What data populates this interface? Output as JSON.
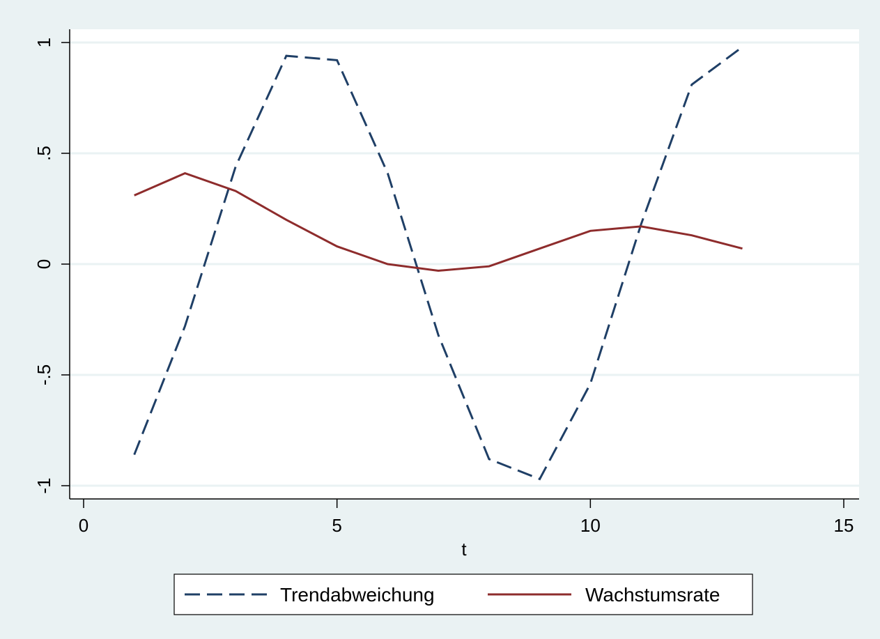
{
  "chart_data": {
    "type": "line",
    "title": "",
    "xlabel": "t",
    "ylabel": "",
    "xlim": [
      0,
      15
    ],
    "ylim": [
      -1,
      1
    ],
    "xticks": [
      0,
      5,
      10,
      15
    ],
    "xtick_labels": [
      "0",
      "5",
      "10",
      "15"
    ],
    "yticks": [
      -1,
      -0.5,
      0,
      0.5,
      1
    ],
    "ytick_labels": [
      "-1",
      "-.5",
      "0",
      ".5",
      "1"
    ],
    "grid": true,
    "legend_position": "bottom",
    "series": [
      {
        "name": "Trendabweichung",
        "style": "dashed",
        "color": "#1f3f66",
        "x": [
          1,
          2,
          3,
          4,
          5,
          6,
          7,
          8,
          9,
          10,
          11,
          12,
          13
        ],
        "y": [
          -0.86,
          -0.28,
          0.44,
          0.94,
          0.92,
          0.41,
          -0.32,
          -0.88,
          -0.97,
          -0.54,
          0.18,
          0.81,
          0.98
        ]
      },
      {
        "name": "Wachstumsrate",
        "style": "solid",
        "color": "#8e2c2c",
        "x": [
          1,
          2,
          3,
          4,
          5,
          6,
          7,
          8,
          9,
          10,
          11,
          12,
          13
        ],
        "y": [
          0.31,
          0.41,
          0.33,
          0.2,
          0.08,
          0.0,
          -0.03,
          -0.01,
          0.07,
          0.15,
          0.17,
          0.13,
          0.07
        ]
      }
    ]
  }
}
